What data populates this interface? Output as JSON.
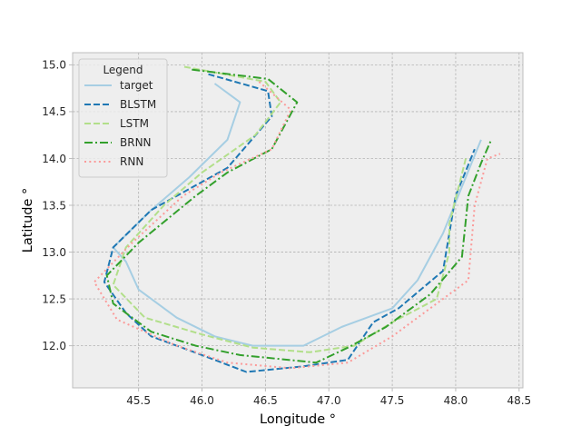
{
  "chart_data": {
    "type": "line",
    "xlabel": "Longitude °",
    "ylabel": "Latitude °",
    "xlim": [
      44.98,
      48.53
    ],
    "ylim": [
      11.55,
      15.13
    ],
    "xticks": [
      45.5,
      46.0,
      46.5,
      47.0,
      47.5,
      48.0,
      48.5
    ],
    "xtick_labels": [
      "45.5",
      "46.0",
      "46.5",
      "47.0",
      "47.5",
      "48.0",
      "48.5"
    ],
    "yticks": [
      12.0,
      12.5,
      13.0,
      13.5,
      14.0,
      14.5,
      15.0
    ],
    "ytick_labels": [
      "12.0",
      "12.5",
      "13.0",
      "13.5",
      "14.0",
      "14.5",
      "15.0"
    ],
    "grid": true,
    "legend": {
      "title": "Legend",
      "position": "top-left"
    },
    "series": [
      {
        "name": "target",
        "color": "#a6cee3",
        "dash": "solid",
        "points": [
          [
            46.1,
            14.8
          ],
          [
            46.3,
            14.6
          ],
          [
            46.2,
            14.2
          ],
          [
            45.9,
            13.8
          ],
          [
            45.6,
            13.45
          ],
          [
            45.3,
            13.05
          ],
          [
            45.4,
            12.9
          ],
          [
            45.5,
            12.6
          ],
          [
            45.8,
            12.3
          ],
          [
            46.1,
            12.1
          ],
          [
            46.4,
            12.0
          ],
          [
            46.8,
            12.0
          ],
          [
            47.1,
            12.2
          ],
          [
            47.5,
            12.4
          ],
          [
            47.7,
            12.7
          ],
          [
            47.9,
            13.2
          ],
          [
            48.05,
            13.7
          ],
          [
            48.2,
            14.2
          ]
        ]
      },
      {
        "name": "BLSTM",
        "color": "#1f78b4",
        "dash": "dashed",
        "points": [
          [
            46.05,
            14.9
          ],
          [
            46.52,
            14.72
          ],
          [
            46.55,
            14.45
          ],
          [
            46.2,
            13.9
          ],
          [
            45.8,
            13.6
          ],
          [
            45.6,
            13.45
          ],
          [
            45.3,
            13.05
          ],
          [
            45.23,
            12.68
          ],
          [
            45.4,
            12.35
          ],
          [
            45.6,
            12.1
          ],
          [
            46.0,
            11.9
          ],
          [
            46.35,
            11.72
          ],
          [
            46.8,
            11.78
          ],
          [
            47.15,
            11.85
          ],
          [
            47.35,
            12.25
          ],
          [
            47.55,
            12.4
          ],
          [
            47.9,
            12.8
          ],
          [
            48.0,
            13.6
          ],
          [
            48.15,
            14.1
          ]
        ]
      },
      {
        "name": "LSTM",
        "color": "#b2df8a",
        "dash": "dashed",
        "points": [
          [
            45.86,
            14.98
          ],
          [
            46.5,
            14.82
          ],
          [
            46.62,
            14.6
          ],
          [
            46.42,
            14.25
          ],
          [
            46.0,
            13.85
          ],
          [
            45.7,
            13.5
          ],
          [
            45.4,
            13.05
          ],
          [
            45.3,
            12.65
          ],
          [
            45.55,
            12.3
          ],
          [
            46.0,
            12.12
          ],
          [
            46.4,
            11.98
          ],
          [
            46.85,
            11.93
          ],
          [
            47.2,
            12.0
          ],
          [
            47.5,
            12.25
          ],
          [
            47.85,
            12.5
          ],
          [
            47.95,
            13.0
          ],
          [
            47.95,
            13.3
          ],
          [
            48.08,
            14.0
          ]
        ]
      },
      {
        "name": "BRNN",
        "color": "#33a02c",
        "dash": "dashdot",
        "points": [
          [
            45.92,
            14.95
          ],
          [
            46.52,
            14.85
          ],
          [
            46.75,
            14.6
          ],
          [
            46.55,
            14.1
          ],
          [
            46.2,
            13.85
          ],
          [
            45.95,
            13.6
          ],
          [
            45.5,
            13.1
          ],
          [
            45.25,
            12.75
          ],
          [
            45.3,
            12.45
          ],
          [
            45.6,
            12.15
          ],
          [
            45.95,
            12.0
          ],
          [
            46.3,
            11.9
          ],
          [
            46.9,
            11.82
          ],
          [
            47.15,
            11.98
          ],
          [
            47.45,
            12.2
          ],
          [
            47.8,
            12.55
          ],
          [
            48.05,
            12.95
          ],
          [
            48.1,
            13.6
          ],
          [
            48.2,
            13.95
          ],
          [
            48.28,
            14.2
          ]
        ]
      },
      {
        "name": "RNN",
        "color": "#fb9a99",
        "dash": "dotted",
        "points": [
          [
            46.45,
            14.82
          ],
          [
            46.7,
            14.52
          ],
          [
            46.55,
            14.1
          ],
          [
            46.15,
            13.85
          ],
          [
            45.85,
            13.6
          ],
          [
            45.45,
            13.1
          ],
          [
            45.15,
            12.68
          ],
          [
            45.33,
            12.28
          ],
          [
            45.8,
            12.0
          ],
          [
            46.2,
            11.82
          ],
          [
            46.7,
            11.76
          ],
          [
            47.15,
            11.82
          ],
          [
            47.5,
            12.1
          ],
          [
            47.85,
            12.45
          ],
          [
            48.1,
            12.7
          ],
          [
            48.15,
            13.5
          ],
          [
            48.25,
            14.0
          ],
          [
            48.35,
            14.05
          ]
        ]
      }
    ]
  }
}
